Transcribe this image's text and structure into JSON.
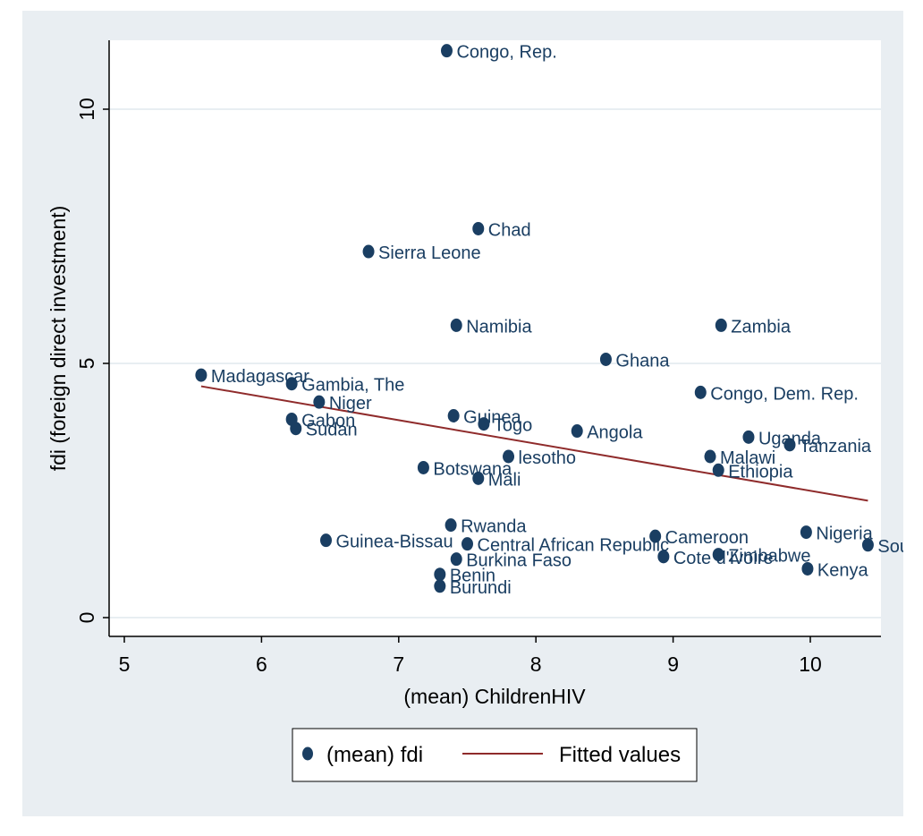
{
  "chart_data": {
    "type": "scatter",
    "title": "",
    "xlabel": "(mean) ChildrenHIV",
    "ylabel": "fdi (foreign direct investment)",
    "xlim": [
      4.9,
      10.5
    ],
    "ylim": [
      -0.4,
      11.4
    ],
    "xticks": [
      "5",
      "6",
      "7",
      "8",
      "9",
      "10"
    ],
    "yticks": [
      "0",
      "5",
      "10"
    ],
    "grid": true,
    "legend_position": "bottom",
    "colors": {
      "outer_background": "#e9eef2",
      "plot_background": "#ffffff",
      "marker": "#1a3e62",
      "fit_line": "#8f2b2b",
      "gridline": "#e8eef2",
      "label_text": "#1a3e62",
      "axis_text": "#000000"
    },
    "series": [
      {
        "name": "(mean) fdi",
        "kind": "scatter",
        "points": [
          {
            "label": "Congo, Rep.",
            "x": 7.35,
            "y": 11.15
          },
          {
            "label": "Chad",
            "x": 7.58,
            "y": 7.65
          },
          {
            "label": "Sierra Leone",
            "x": 6.78,
            "y": 7.2
          },
          {
            "label": "Namibia",
            "x": 7.42,
            "y": 5.75
          },
          {
            "label": "Zambia",
            "x": 9.35,
            "y": 5.75
          },
          {
            "label": "Ghana",
            "x": 8.51,
            "y": 5.08
          },
          {
            "label": "Madagascar",
            "x": 5.56,
            "y": 4.77
          },
          {
            "label": "Gambia, The",
            "x": 6.22,
            "y": 4.6
          },
          {
            "label": "Congo, Dem. Rep.",
            "x": 9.2,
            "y": 4.43
          },
          {
            "label": "Niger",
            "x": 6.42,
            "y": 4.24
          },
          {
            "label": "Guinea",
            "x": 7.4,
            "y": 3.97
          },
          {
            "label": "Gabon",
            "x": 6.22,
            "y": 3.9
          },
          {
            "label": "Togo",
            "x": 7.62,
            "y": 3.81
          },
          {
            "label": "Sudan",
            "x": 6.25,
            "y": 3.72
          },
          {
            "label": "Angola",
            "x": 8.3,
            "y": 3.67
          },
          {
            "label": "Uganda",
            "x": 9.55,
            "y": 3.55
          },
          {
            "label": "Tanzania",
            "x": 9.85,
            "y": 3.4
          },
          {
            "label": "lesotho",
            "x": 7.8,
            "y": 3.17
          },
          {
            "label": "Malawi",
            "x": 9.27,
            "y": 3.17
          },
          {
            "label": "Botswana",
            "x": 7.18,
            "y": 2.95
          },
          {
            "label": "Ethiopia",
            "x": 9.33,
            "y": 2.9
          },
          {
            "label": "Mali",
            "x": 7.58,
            "y": 2.74
          },
          {
            "label": "Rwanda",
            "x": 7.38,
            "y": 1.82
          },
          {
            "label": "Nigeria",
            "x": 9.97,
            "y": 1.68
          },
          {
            "label": "Cameroon",
            "x": 8.87,
            "y": 1.6
          },
          {
            "label": "Guinea-Bissau",
            "x": 6.47,
            "y": 1.52
          },
          {
            "label": "Central African Republic",
            "x": 7.5,
            "y": 1.45
          },
          {
            "label": "South Africa",
            "x": 10.42,
            "y": 1.43
          },
          {
            "label": "Zimbabwe",
            "x": 9.33,
            "y": 1.24
          },
          {
            "label": "Cote d'Ivoire",
            "x": 8.93,
            "y": 1.2
          },
          {
            "label": "Burkina Faso",
            "x": 7.42,
            "y": 1.15
          },
          {
            "label": "Kenya",
            "x": 9.98,
            "y": 0.96
          },
          {
            "label": "Benin",
            "x": 7.3,
            "y": 0.85
          },
          {
            "label": "Burundi",
            "x": 7.3,
            "y": 0.62
          }
        ]
      },
      {
        "name": "Fitted values",
        "kind": "line",
        "x": [
          5.56,
          10.42
        ],
        "y": [
          4.55,
          2.3
        ]
      }
    ]
  }
}
